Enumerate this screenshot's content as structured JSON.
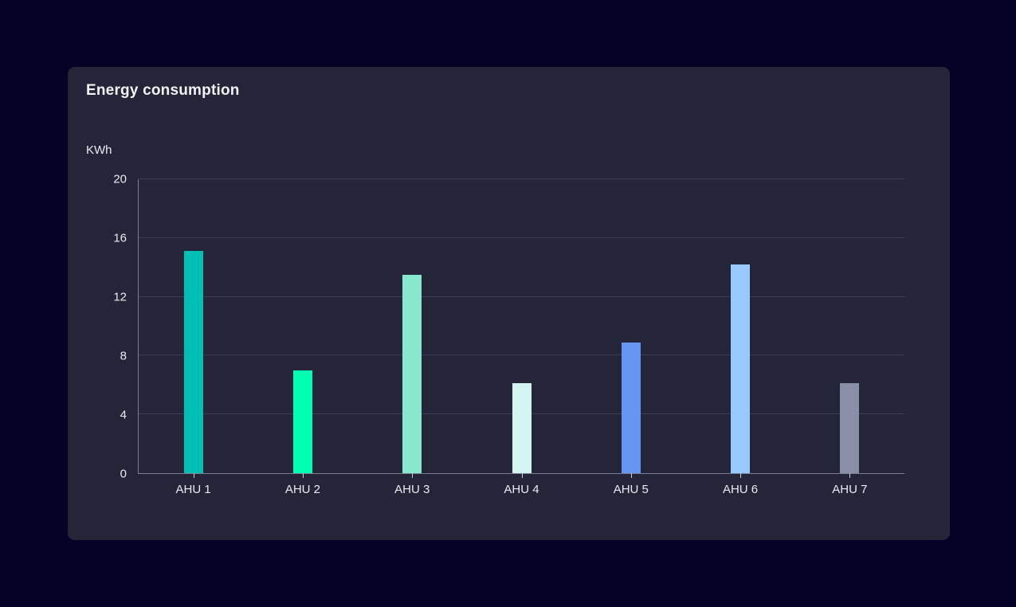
{
  "card": {
    "title": "Energy consumption",
    "unit_label": "KWh"
  },
  "chart_data": {
    "type": "bar",
    "title": "Energy consumption",
    "xlabel": "",
    "ylabel": "KWh",
    "categories": [
      "AHU 1",
      "AHU 2",
      "AHU 3",
      "AHU 4",
      "AHU 5",
      "AHU 6",
      "AHU 7"
    ],
    "values": [
      15.1,
      7.0,
      13.5,
      6.1,
      8.9,
      14.2,
      6.1
    ],
    "bar_colors": [
      "#00C0B5",
      "#00FFB1",
      "#86E8CD",
      "#D2F5F2",
      "#6496F2",
      "#97C9FD",
      "#8A8FA8"
    ],
    "ylim": [
      0,
      20
    ],
    "yticks": [
      0,
      4,
      8,
      12,
      16,
      20
    ],
    "grid": true,
    "legend_position": "none"
  },
  "theme": {
    "page_background": "#030226",
    "card_background": "#252539",
    "gridline_color": "#3D3D58",
    "axis_color": "#7B7E92",
    "tick_mark_color": "#C9CBD8",
    "text_color": "#E9EAF1",
    "title_color": "#F2F2F6"
  }
}
